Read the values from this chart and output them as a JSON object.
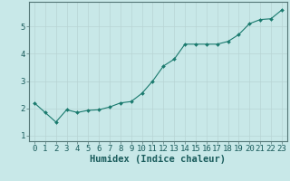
{
  "x": [
    0,
    1,
    2,
    3,
    4,
    5,
    6,
    7,
    8,
    9,
    10,
    11,
    12,
    13,
    14,
    15,
    16,
    17,
    18,
    19,
    20,
    21,
    22,
    23
  ],
  "y": [
    2.2,
    1.85,
    1.5,
    1.95,
    1.85,
    1.93,
    1.95,
    2.05,
    2.2,
    2.25,
    2.55,
    3.0,
    3.55,
    3.8,
    4.35,
    4.35,
    4.35,
    4.35,
    4.45,
    4.7,
    5.1,
    5.25,
    5.28,
    5.6
  ],
  "xlabel": "Humidex (Indice chaleur)",
  "ylabel": "",
  "xlim": [
    -0.5,
    23.5
  ],
  "ylim": [
    0.8,
    5.9
  ],
  "yticks": [
    1,
    2,
    3,
    4,
    5
  ],
  "xticks": [
    0,
    1,
    2,
    3,
    4,
    5,
    6,
    7,
    8,
    9,
    10,
    11,
    12,
    13,
    14,
    15,
    16,
    17,
    18,
    19,
    20,
    21,
    22,
    23
  ],
  "line_color": "#1a7a6e",
  "marker_color": "#1a7a6e",
  "bg_color": "#c8e8e8",
  "grid_color": "#b8d4d4",
  "axes_bg": "#c8e8e8",
  "tick_label_fontsize": 6.5,
  "xlabel_fontsize": 7.5
}
